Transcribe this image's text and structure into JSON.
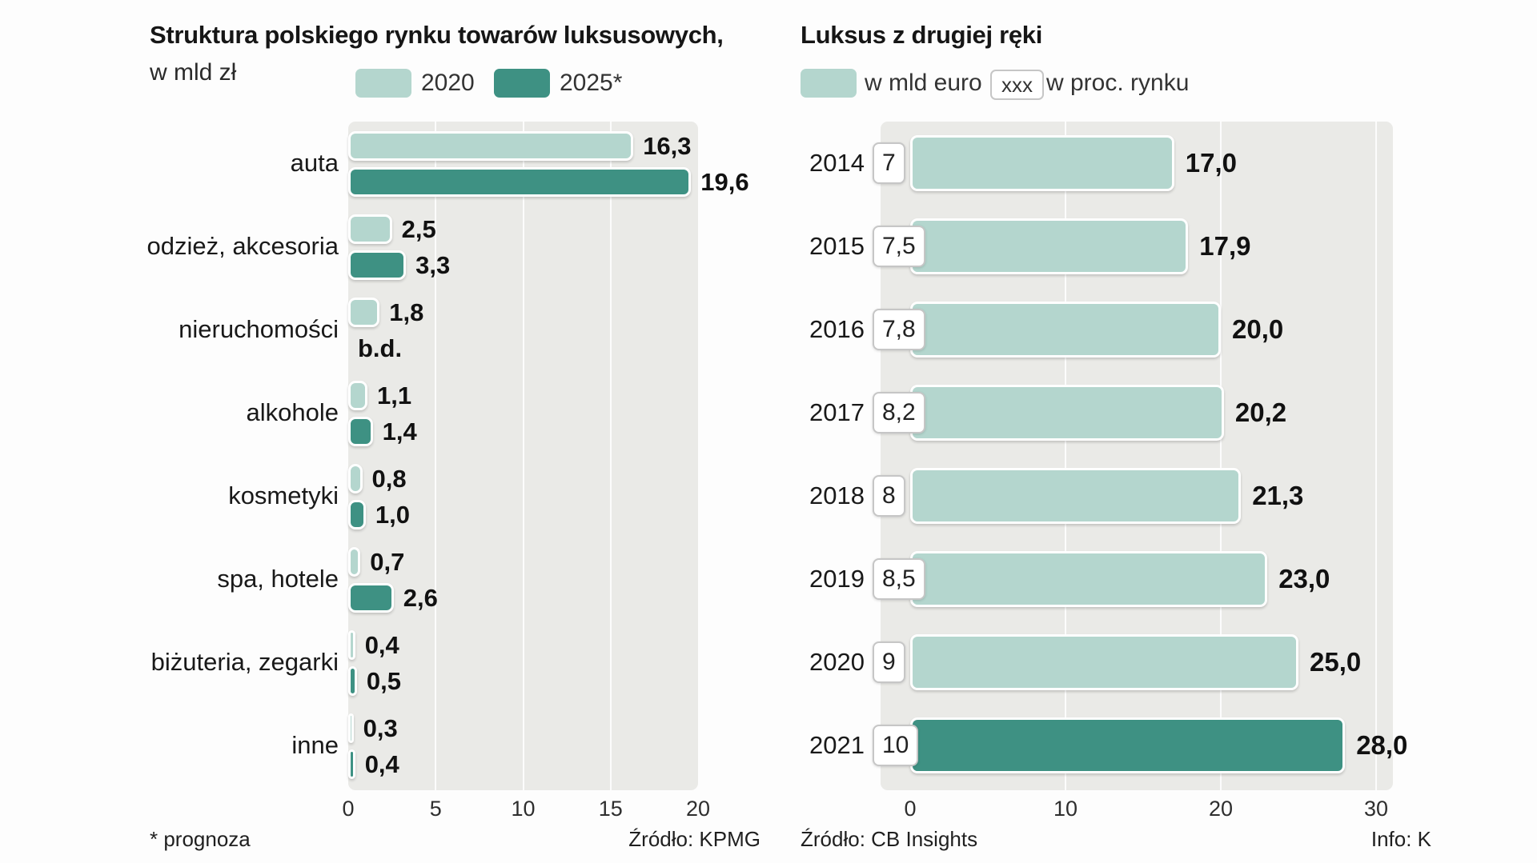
{
  "colors": {
    "light_teal": "#b4d6ce",
    "dark_teal": "#3e9183",
    "panel_bg": "#eaeae7",
    "box_border": "#c6c6c6"
  },
  "left": {
    "title": "Struktura polskiego rynku towarów luksusowych,",
    "subtitle": "w mld zł",
    "legend": [
      {
        "label": "2020",
        "color": "#b4d6ce"
      },
      {
        "label": "2025*",
        "color": "#3e9183"
      }
    ],
    "footnote": "* prognoza",
    "source": "Źródło: KPMG"
  },
  "right": {
    "title": "Luksus z drugiej ręki",
    "legend_value": "w mld euro",
    "legend_box": "xxx",
    "legend_percent": "w proc. rynku",
    "source": "Źródło: CB Insights",
    "info": "Info: K"
  },
  "chart_data": [
    {
      "type": "bar",
      "orientation": "horizontal",
      "title": "Struktura polskiego rynku towarów luksusowych, w mld zł",
      "unit": "mld zł",
      "categories": [
        "auta",
        "odzież, akcesoria",
        "nieruchomości",
        "alkohole",
        "kosmetyki",
        "spa, hotele",
        "biżuteria, zegarki",
        "inne"
      ],
      "series": [
        {
          "name": "2020",
          "values": [
            16.3,
            2.5,
            1.8,
            1.1,
            0.8,
            0.7,
            0.4,
            0.3
          ],
          "labels": [
            "16,3",
            "2,5",
            "1,8",
            "1,1",
            "0,8",
            "0,7",
            "0,4",
            "0,3"
          ]
        },
        {
          "name": "2025*",
          "values": [
            19.6,
            3.3,
            null,
            1.4,
            1.0,
            2.6,
            0.5,
            0.4
          ],
          "labels": [
            "19,6",
            "3,3",
            "b.d.",
            "1,4",
            "1,0",
            "2,6",
            "0,5",
            "0,4"
          ]
        }
      ],
      "xlim": [
        0,
        20
      ],
      "xticks": [
        {
          "value": 0,
          "label": "0"
        },
        {
          "value": 5,
          "label": "5"
        },
        {
          "value": 10,
          "label": "10"
        },
        {
          "value": 15,
          "label": "15"
        },
        {
          "value": 20,
          "label": "20"
        }
      ],
      "grid": true,
      "note": "* prognoza",
      "source": "Źródło: KPMG"
    },
    {
      "type": "bar",
      "orientation": "horizontal",
      "title": "Luksus z drugiej ręki",
      "categories": [
        "2014",
        "2015",
        "2016",
        "2017",
        "2018",
        "2019",
        "2020",
        "2021"
      ],
      "series": [
        {
          "name": "w mld euro",
          "values": [
            7,
            7.5,
            7.8,
            8.2,
            8,
            8.5,
            9,
            10
          ],
          "labels": [
            "7",
            "7,5",
            "7,8",
            "8,2",
            "8",
            "8,5",
            "9",
            "10"
          ]
        },
        {
          "name": "w proc. rynku",
          "values": [
            17.0,
            17.9,
            20.0,
            20.2,
            21.3,
            23.0,
            25.0,
            28.0
          ],
          "labels": [
            "17,0",
            "17,9",
            "20,0",
            "20,2",
            "21,3",
            "23,0",
            "25,0",
            "28,0"
          ]
        }
      ],
      "highlight_category": "2021",
      "xlim": [
        0,
        30
      ],
      "xticks": [
        {
          "value": 0,
          "label": "0"
        },
        {
          "value": 10,
          "label": "10"
        },
        {
          "value": 20,
          "label": "20"
        },
        {
          "value": 30,
          "label": "30"
        }
      ],
      "grid": true,
      "source": "Źródło: CB Insights",
      "info": "Info: K"
    }
  ]
}
